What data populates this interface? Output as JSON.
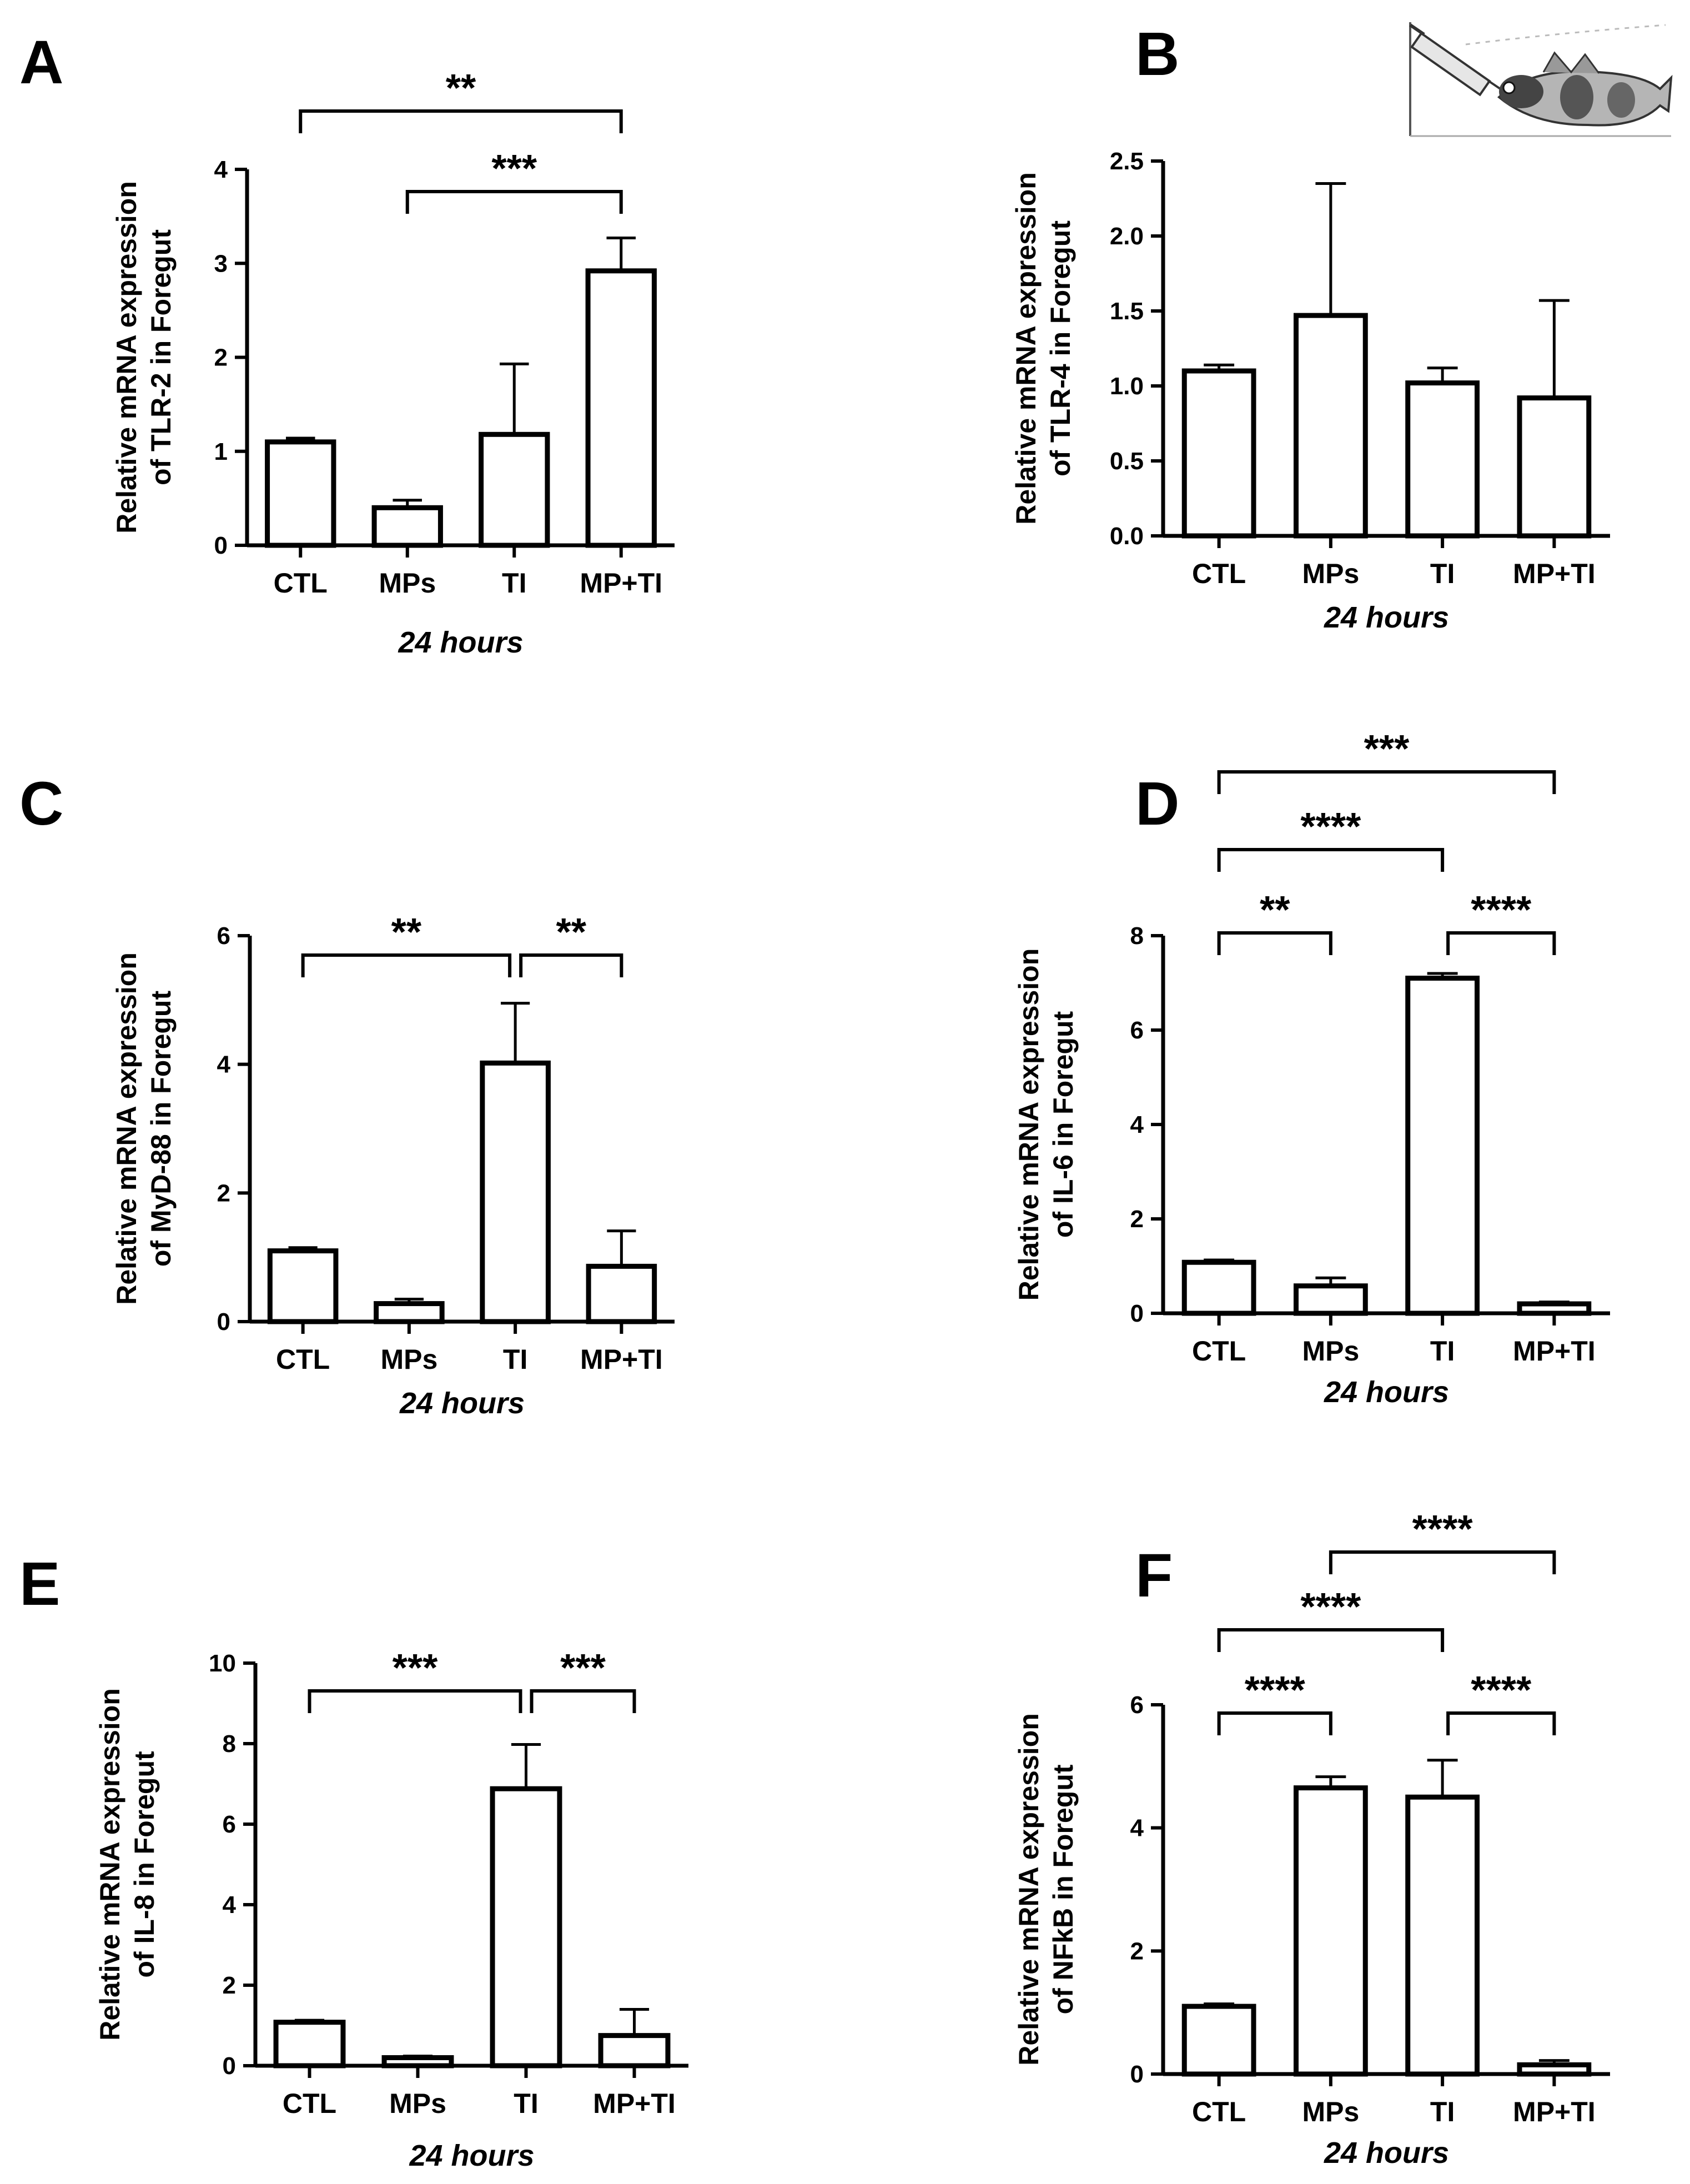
{
  "figure": {
    "inset_name": "fish-injection-illustration"
  },
  "chart_data": [
    {
      "type": "bar",
      "panel": "A",
      "categories": [
        "CTL",
        "MPs",
        "TI",
        "MP+TI"
      ],
      "values": [
        1.1,
        0.4,
        1.18,
        2.92
      ],
      "errors": [
        0.04,
        0.08,
        0.75,
        0.35
      ],
      "ylabel_lines": [
        "Relative mRNA expression",
        "of TLR-2 in Foregut"
      ],
      "xlabel": "24 hours",
      "ylim": [
        0,
        4
      ],
      "yticks": [
        0,
        1,
        2,
        3,
        4
      ],
      "ytick_labels": [
        "0",
        "1",
        "2",
        "3",
        "4"
      ],
      "significance": [
        {
          "from": 0,
          "to": 3,
          "label": "**"
        },
        {
          "from": 1,
          "to": 3,
          "label": "***"
        }
      ]
    },
    {
      "type": "bar",
      "panel": "B",
      "categories": [
        "CTL",
        "MPs",
        "TI",
        "MP+TI"
      ],
      "values": [
        1.1,
        1.47,
        1.02,
        0.92
      ],
      "errors": [
        0.04,
        0.88,
        0.1,
        0.65
      ],
      "ylabel_lines": [
        "Relative mRNA expression",
        "of TLR-4 in Foregut"
      ],
      "xlabel": "24 hours",
      "ylim": [
        0,
        2.5
      ],
      "yticks": [
        0,
        0.5,
        1.0,
        1.5,
        2.0,
        2.5
      ],
      "ytick_labels": [
        "0.0",
        "0.5",
        "1.0",
        "1.5",
        "2.0",
        "2.5"
      ],
      "significance": []
    },
    {
      "type": "bar",
      "panel": "C",
      "categories": [
        "CTL",
        "MPs",
        "TI",
        "MP+TI"
      ],
      "values": [
        1.1,
        0.28,
        4.02,
        0.86
      ],
      "errors": [
        0.05,
        0.07,
        0.93,
        0.55
      ],
      "ylabel_lines": [
        "Relative mRNA expression",
        "of MyD-88 in Foregut"
      ],
      "xlabel": "24 hours",
      "ylim": [
        0,
        6
      ],
      "yticks": [
        0,
        2,
        4,
        6
      ],
      "ytick_labels": [
        "0",
        "2",
        "4",
        "6"
      ],
      "significance": [
        {
          "from": 0,
          "to": 2,
          "label": "**"
        },
        {
          "from": 2,
          "to": 3,
          "label": "**"
        }
      ]
    },
    {
      "type": "bar",
      "panel": "D",
      "categories": [
        "CTL",
        "MPs",
        "TI",
        "MP+TI"
      ],
      "values": [
        1.08,
        0.58,
        7.1,
        0.2
      ],
      "errors": [
        0.05,
        0.17,
        0.1,
        0.04
      ],
      "ylabel_lines": [
        "Relative mRNA expression",
        "of IL-6 in Foregut"
      ],
      "xlabel": "24 hours",
      "ylim": [
        0,
        8
      ],
      "yticks": [
        0,
        2,
        4,
        6,
        8
      ],
      "ytick_labels": [
        "0",
        "2",
        "4",
        "6",
        "8"
      ],
      "significance": [
        {
          "from": 0,
          "to": 3,
          "label": "***"
        },
        {
          "from": 0,
          "to": 2,
          "label": "****"
        },
        {
          "from": 0,
          "to": 1,
          "label": "**"
        },
        {
          "from": 2,
          "to": 3,
          "label": "****"
        }
      ]
    },
    {
      "type": "bar",
      "panel": "E",
      "categories": [
        "CTL",
        "MPs",
        "TI",
        "MP+TI"
      ],
      "values": [
        1.08,
        0.2,
        6.88,
        0.75
      ],
      "errors": [
        0.05,
        0.04,
        1.1,
        0.65
      ],
      "ylabel_lines": [
        "Relative mRNA expression",
        "of IL-8 in Foregut"
      ],
      "xlabel": "24 hours",
      "ylim": [
        0,
        10
      ],
      "yticks": [
        0,
        2,
        4,
        6,
        8,
        10
      ],
      "ytick_labels": [
        "0",
        "2",
        "4",
        "6",
        "8",
        "10"
      ],
      "significance": [
        {
          "from": 0,
          "to": 2,
          "label": "***"
        },
        {
          "from": 2,
          "to": 3,
          "label": "***"
        }
      ]
    },
    {
      "type": "bar",
      "panel": "F",
      "categories": [
        "CTL",
        "MPs",
        "TI",
        "MP+TI"
      ],
      "values": [
        1.1,
        4.65,
        4.5,
        0.15
      ],
      "errors": [
        0.04,
        0.18,
        0.6,
        0.07
      ],
      "ylabel_lines": [
        "Relative mRNA expression",
        "of NFkB in Foregut"
      ],
      "xlabel": "24 hours",
      "ylim": [
        0,
        6
      ],
      "yticks": [
        0,
        2,
        4,
        6
      ],
      "ytick_labels": [
        "0",
        "2",
        "4",
        "6"
      ],
      "significance": [
        {
          "from": 1,
          "to": 3,
          "label": "****"
        },
        {
          "from": 0,
          "to": 2,
          "label": "****"
        },
        {
          "from": 0,
          "to": 1,
          "label": "****"
        },
        {
          "from": 2,
          "to": 3,
          "label": "****"
        }
      ]
    }
  ]
}
